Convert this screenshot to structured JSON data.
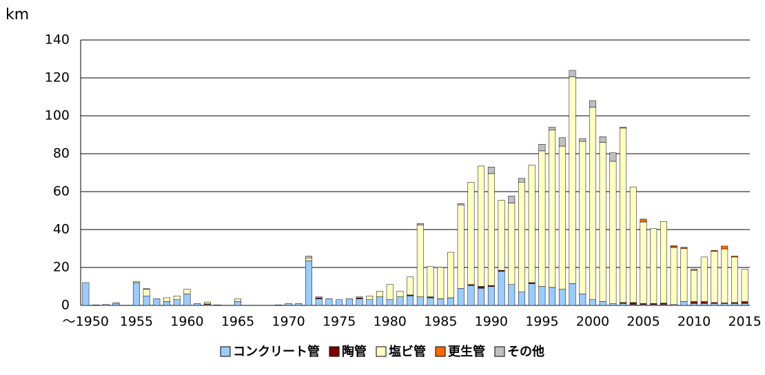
{
  "chart_data": {
    "type": "stacked_bar",
    "y_label": "km",
    "categories": [
      "～1950",
      null,
      null,
      null,
      null,
      "1955",
      null,
      null,
      null,
      null,
      "1960",
      null,
      null,
      null,
      null,
      "1965",
      null,
      null,
      null,
      null,
      "1970",
      null,
      null,
      null,
      null,
      "1975",
      null,
      null,
      null,
      null,
      "1980",
      null,
      null,
      null,
      null,
      "1985",
      null,
      null,
      null,
      null,
      "1990",
      null,
      null,
      null,
      null,
      "1995",
      null,
      null,
      null,
      null,
      "2000",
      null,
      null,
      null,
      null,
      "2005",
      null,
      null,
      null,
      null,
      "2010",
      null,
      null,
      null,
      null,
      "2015"
    ],
    "series": [
      {
        "name": "コンクリート管",
        "color": "#99ccff",
        "values": [
          12,
          0.3,
          0.5,
          1,
          0,
          12,
          5,
          3.5,
          2,
          3,
          6,
          1,
          0.5,
          0.3,
          0,
          2,
          0,
          0,
          0,
          0.3,
          1,
          1,
          23.5,
          3.5,
          3.5,
          3,
          3.5,
          3.5,
          3,
          4.5,
          3,
          4.5,
          5,
          4.5,
          4,
          3.5,
          4,
          9,
          10.5,
          9,
          10,
          18,
          11,
          7,
          11.5,
          10,
          9.5,
          8.5,
          11.5,
          6,
          3,
          2,
          1,
          1,
          0.5,
          0.5,
          0.5,
          0.5,
          0.5,
          2,
          1,
          1,
          1,
          1,
          1,
          1
        ]
      },
      {
        "name": "陶管",
        "color": "#800000",
        "values": [
          0,
          0,
          0,
          0,
          0,
          0,
          0,
          0,
          0,
          0,
          0,
          0,
          0.3,
          0,
          0,
          0,
          0,
          0,
          0,
          0,
          0,
          0,
          0,
          0.5,
          0,
          0,
          0,
          0.5,
          0,
          0,
          0,
          0,
          0.5,
          0,
          0.5,
          0,
          0,
          0,
          0.5,
          1,
          0.5,
          0.5,
          0,
          0,
          0.5,
          0,
          0,
          0,
          0,
          0,
          0,
          0,
          0,
          0.5,
          1,
          0.5,
          0.5,
          0.7,
          0,
          0,
          1,
          1,
          0.5,
          0.3,
          0.5,
          1
        ]
      },
      {
        "name": "塩ビ管",
        "color": "#ffffc0",
        "values": [
          0,
          0,
          0,
          0.5,
          0,
          0.5,
          3.5,
          0,
          2,
          2,
          2.5,
          0,
          1,
          0,
          0,
          1.5,
          0,
          0,
          0,
          0,
          0,
          0,
          1.5,
          0.5,
          0,
          0,
          0,
          0.5,
          2,
          3,
          8,
          3,
          9.5,
          38,
          16,
          16.5,
          24,
          44,
          54,
          63.5,
          59,
          37,
          43,
          58,
          62,
          71.5,
          83,
          75.5,
          109,
          80.5,
          101.5,
          84,
          75,
          92,
          61,
          43,
          39.5,
          43,
          30,
          28,
          16.5,
          23.5,
          27,
          28.5,
          24,
          17
        ]
      },
      {
        "name": "更生管",
        "color": "#ff6600",
        "values": [
          0,
          0,
          0,
          0,
          0,
          0,
          0,
          0,
          0,
          0,
          0,
          0,
          0,
          0,
          0,
          0,
          0,
          0,
          0,
          0,
          0,
          0,
          0,
          0,
          0,
          0,
          0,
          0,
          0,
          0,
          0,
          0,
          0,
          0,
          0,
          0,
          0,
          0,
          0,
          0,
          0,
          0,
          0,
          0,
          0,
          0,
          0,
          0,
          0,
          0,
          0,
          0,
          0,
          0,
          0,
          1.5,
          0,
          0,
          0.7,
          0.7,
          0.5,
          0,
          0.5,
          1.5,
          0.5,
          0
        ]
      },
      {
        "name": "その他",
        "color": "#c0c0c0",
        "values": [
          0,
          0,
          0,
          0,
          0,
          0,
          0.3,
          0,
          0,
          0,
          0,
          0,
          0,
          0,
          0,
          0,
          0,
          0,
          0,
          0,
          0,
          0,
          1,
          0,
          0,
          0,
          0,
          0,
          0,
          0,
          0,
          0,
          0,
          0.7,
          0,
          0,
          0,
          0.7,
          0,
          0,
          3.5,
          0,
          3.7,
          2,
          0,
          3.5,
          1.5,
          4.5,
          3.5,
          1.5,
          3.5,
          3,
          4.5,
          0.5,
          0,
          0,
          0,
          0,
          0.3,
          0,
          0,
          0,
          0,
          0,
          0,
          0
        ]
      }
    ],
    "ylim": [
      0,
      140
    ],
    "yticks": [
      0,
      20,
      40,
      60,
      80,
      100,
      120,
      140
    ],
    "grid": true,
    "legend": "bottom"
  }
}
